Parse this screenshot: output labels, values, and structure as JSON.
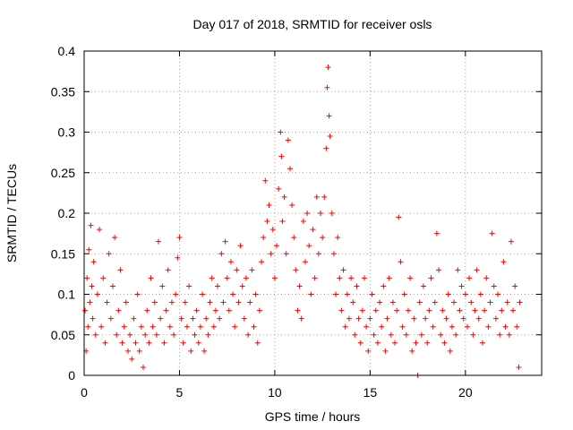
{
  "chart_data": {
    "type": "scatter",
    "title": "Day 017 of 2018, SRMTID for receiver osls",
    "xlabel": "GPS time / hours",
    "ylabel": "SRMTID / TECUs",
    "xlim": [
      0,
      24
    ],
    "ylim": [
      0,
      0.4
    ],
    "xticks": [
      0,
      5,
      10,
      15,
      20
    ],
    "xtick_labels": [
      "0",
      "5",
      "10",
      "15",
      "20"
    ],
    "yticks": [
      0,
      0.05,
      0.1,
      0.15,
      0.2,
      0.25,
      0.3,
      0.35,
      0.4
    ],
    "ytick_labels": [
      "0",
      "0.05",
      "0.1",
      "0.15",
      "0.2",
      "0.25",
      "0.3",
      "0.35",
      "0.4"
    ],
    "grid": true,
    "marker": "+",
    "color": "#ff0000",
    "series": [
      {
        "name": "SRMTID",
        "points": [
          [
            0.05,
            0.08
          ],
          [
            0.1,
            0.03
          ],
          [
            0.15,
            0.12
          ],
          [
            0.2,
            0.06
          ],
          [
            0.25,
            0.155
          ],
          [
            0.3,
            0.09
          ],
          [
            0.35,
            0.185
          ],
          [
            0.4,
            0.11
          ],
          [
            0.45,
            0.07
          ],
          [
            0.5,
            0.14
          ],
          [
            0.6,
            0.05
          ],
          [
            0.7,
            0.1
          ],
          [
            0.8,
            0.18
          ],
          [
            0.9,
            0.06
          ],
          [
            1.0,
            0.12
          ],
          [
            1.1,
            0.04
          ],
          [
            1.2,
            0.09
          ],
          [
            1.3,
            0.15
          ],
          [
            1.4,
            0.07
          ],
          [
            1.5,
            0.11
          ],
          [
            1.6,
            0.17
          ],
          [
            1.7,
            0.05
          ],
          [
            1.8,
            0.08
          ],
          [
            1.9,
            0.13
          ],
          [
            2.0,
            0.04
          ],
          [
            2.1,
            0.06
          ],
          [
            2.2,
            0.09
          ],
          [
            2.3,
            0.03
          ],
          [
            2.4,
            0.05
          ],
          [
            2.5,
            0.02
          ],
          [
            2.6,
            0.07
          ],
          [
            2.7,
            0.04
          ],
          [
            2.8,
            0.1
          ],
          [
            2.9,
            0.03
          ],
          [
            3.0,
            0.06
          ],
          [
            3.1,
            0.01
          ],
          [
            3.2,
            0.05
          ],
          [
            3.3,
            0.08
          ],
          [
            3.4,
            0.04
          ],
          [
            3.5,
            0.12
          ],
          [
            3.6,
            0.06
          ],
          [
            3.7,
            0.09
          ],
          [
            3.8,
            0.05
          ],
          [
            3.9,
            0.165
          ],
          [
            4.0,
            0.07
          ],
          [
            4.1,
            0.11
          ],
          [
            4.2,
            0.04
          ],
          [
            4.3,
            0.08
          ],
          [
            4.4,
            0.13
          ],
          [
            4.5,
            0.06
          ],
          [
            4.6,
            0.09
          ],
          [
            4.7,
            0.05
          ],
          [
            4.8,
            0.1
          ],
          [
            4.9,
            0.145
          ],
          [
            5.0,
            0.17
          ],
          [
            5.1,
            0.07
          ],
          [
            5.2,
            0.04
          ],
          [
            5.3,
            0.09
          ],
          [
            5.4,
            0.06
          ],
          [
            5.5,
            0.11
          ],
          [
            5.6,
            0.03
          ],
          [
            5.7,
            0.07
          ],
          [
            5.8,
            0.05
          ],
          [
            5.9,
            0.08
          ],
          [
            6.0,
            0.04
          ],
          [
            6.1,
            0.06
          ],
          [
            6.2,
            0.1
          ],
          [
            6.3,
            0.03
          ],
          [
            6.4,
            0.07
          ],
          [
            6.5,
            0.05
          ],
          [
            6.6,
            0.09
          ],
          [
            6.7,
            0.12
          ],
          [
            6.8,
            0.06
          ],
          [
            6.9,
            0.08
          ],
          [
            7.0,
            0.11
          ],
          [
            7.1,
            0.07
          ],
          [
            7.2,
            0.15
          ],
          [
            7.3,
            0.09
          ],
          [
            7.4,
            0.165
          ],
          [
            7.5,
            0.12
          ],
          [
            7.6,
            0.08
          ],
          [
            7.7,
            0.14
          ],
          [
            7.8,
            0.1
          ],
          [
            7.9,
            0.06
          ],
          [
            8.0,
            0.13
          ],
          [
            8.1,
            0.09
          ],
          [
            8.2,
            0.16
          ],
          [
            8.3,
            0.11
          ],
          [
            8.4,
            0.07
          ],
          [
            8.5,
            0.12
          ],
          [
            8.6,
            0.05
          ],
          [
            8.7,
            0.09
          ],
          [
            8.8,
            0.13
          ],
          [
            8.9,
            0.06
          ],
          [
            9.0,
            0.1
          ],
          [
            9.1,
            0.04
          ],
          [
            9.2,
            0.08
          ],
          [
            9.3,
            0.14
          ],
          [
            9.4,
            0.17
          ],
          [
            9.5,
            0.24
          ],
          [
            9.6,
            0.19
          ],
          [
            9.7,
            0.21
          ],
          [
            9.8,
            0.15
          ],
          [
            9.9,
            0.18
          ],
          [
            10.0,
            0.12
          ],
          [
            10.1,
            0.16
          ],
          [
            10.2,
            0.23
          ],
          [
            10.3,
            0.3
          ],
          [
            10.35,
            0.27
          ],
          [
            10.4,
            0.19
          ],
          [
            10.5,
            0.22
          ],
          [
            10.6,
            0.15
          ],
          [
            10.7,
            0.29
          ],
          [
            10.8,
            0.255
          ],
          [
            10.9,
            0.21
          ],
          [
            11.0,
            0.17
          ],
          [
            11.1,
            0.13
          ],
          [
            11.2,
            0.08
          ],
          [
            11.3,
            0.11
          ],
          [
            11.4,
            0.07
          ],
          [
            11.5,
            0.19
          ],
          [
            11.6,
            0.14
          ],
          [
            11.7,
            0.2
          ],
          [
            11.8,
            0.16
          ],
          [
            11.9,
            0.1
          ],
          [
            12.0,
            0.18
          ],
          [
            12.1,
            0.12
          ],
          [
            12.2,
            0.22
          ],
          [
            12.3,
            0.15
          ],
          [
            12.4,
            0.2
          ],
          [
            12.5,
            0.17
          ],
          [
            12.6,
            0.22
          ],
          [
            12.7,
            0.28
          ],
          [
            12.75,
            0.355
          ],
          [
            12.8,
            0.38
          ],
          [
            12.85,
            0.32
          ],
          [
            12.9,
            0.295
          ],
          [
            13.0,
            0.2
          ],
          [
            13.1,
            0.15
          ],
          [
            13.2,
            0.1
          ],
          [
            13.3,
            0.17
          ],
          [
            13.4,
            0.12
          ],
          [
            13.5,
            0.08
          ],
          [
            13.6,
            0.13
          ],
          [
            13.7,
            0.06
          ],
          [
            13.8,
            0.1
          ],
          [
            13.9,
            0.07
          ],
          [
            14.0,
            0.12
          ],
          [
            14.1,
            0.09
          ],
          [
            14.2,
            0.05
          ],
          [
            14.3,
            0.11
          ],
          [
            14.4,
            0.07
          ],
          [
            14.5,
            0.04
          ],
          [
            14.6,
            0.08
          ],
          [
            14.7,
            0.12
          ],
          [
            14.8,
            0.06
          ],
          [
            14.9,
            0.03
          ],
          [
            15.0,
            0.07
          ],
          [
            15.1,
            0.1
          ],
          [
            15.2,
            0.05
          ],
          [
            15.3,
            0.08
          ],
          [
            15.4,
            0.04
          ],
          [
            15.5,
            0.09
          ],
          [
            15.6,
            0.06
          ],
          [
            15.7,
            0.11
          ],
          [
            15.8,
            0.03
          ],
          [
            15.9,
            0.07
          ],
          [
            16.0,
            0.12
          ],
          [
            16.1,
            0.05
          ],
          [
            16.2,
            0.09
          ],
          [
            16.3,
            0.04
          ],
          [
            16.4,
            0.08
          ],
          [
            16.5,
            0.195
          ],
          [
            16.6,
            0.14
          ],
          [
            16.7,
            0.06
          ],
          [
            16.8,
            0.1
          ],
          [
            16.9,
            0.05
          ],
          [
            17.0,
            0.08
          ],
          [
            17.1,
            0.12
          ],
          [
            17.2,
            0.03
          ],
          [
            17.3,
            0.07
          ],
          [
            17.4,
            0.04
          ],
          [
            17.5,
            0.0
          ],
          [
            17.6,
            0.09
          ],
          [
            17.7,
            0.05
          ],
          [
            17.8,
            0.11
          ],
          [
            17.9,
            0.07
          ],
          [
            18.0,
            0.04
          ],
          [
            18.1,
            0.08
          ],
          [
            18.2,
            0.12
          ],
          [
            18.3,
            0.06
          ],
          [
            18.4,
            0.09
          ],
          [
            18.5,
            0.175
          ],
          [
            18.6,
            0.13
          ],
          [
            18.7,
            0.05
          ],
          [
            18.8,
            0.08
          ],
          [
            18.9,
            0.04
          ],
          [
            19.0,
            0.07
          ],
          [
            19.1,
            0.1
          ],
          [
            19.2,
            0.03
          ],
          [
            19.3,
            0.06
          ],
          [
            19.4,
            0.09
          ],
          [
            19.5,
            0.05
          ],
          [
            19.6,
            0.13
          ],
          [
            19.7,
            0.08
          ],
          [
            19.8,
            0.11
          ],
          [
            19.9,
            0.07
          ],
          [
            20.0,
            0.1
          ],
          [
            20.1,
            0.06
          ],
          [
            20.2,
            0.12
          ],
          [
            20.3,
            0.09
          ],
          [
            20.4,
            0.05
          ],
          [
            20.5,
            0.08
          ],
          [
            20.6,
            0.13
          ],
          [
            20.7,
            0.07
          ],
          [
            20.8,
            0.1
          ],
          [
            20.9,
            0.04
          ],
          [
            21.0,
            0.08
          ],
          [
            21.1,
            0.12
          ],
          [
            21.2,
            0.06
          ],
          [
            21.3,
            0.09
          ],
          [
            21.4,
            0.175
          ],
          [
            21.5,
            0.11
          ],
          [
            21.6,
            0.07
          ],
          [
            21.7,
            0.1
          ],
          [
            21.8,
            0.05
          ],
          [
            21.9,
            0.08
          ],
          [
            22.0,
            0.14
          ],
          [
            22.1,
            0.06
          ],
          [
            22.2,
            0.09
          ],
          [
            22.3,
            0.05
          ],
          [
            22.4,
            0.165
          ],
          [
            22.5,
            0.08
          ],
          [
            22.6,
            0.11
          ],
          [
            22.7,
            0.06
          ],
          [
            22.8,
            0.01
          ],
          [
            22.85,
            0.09
          ]
        ]
      }
    ]
  }
}
